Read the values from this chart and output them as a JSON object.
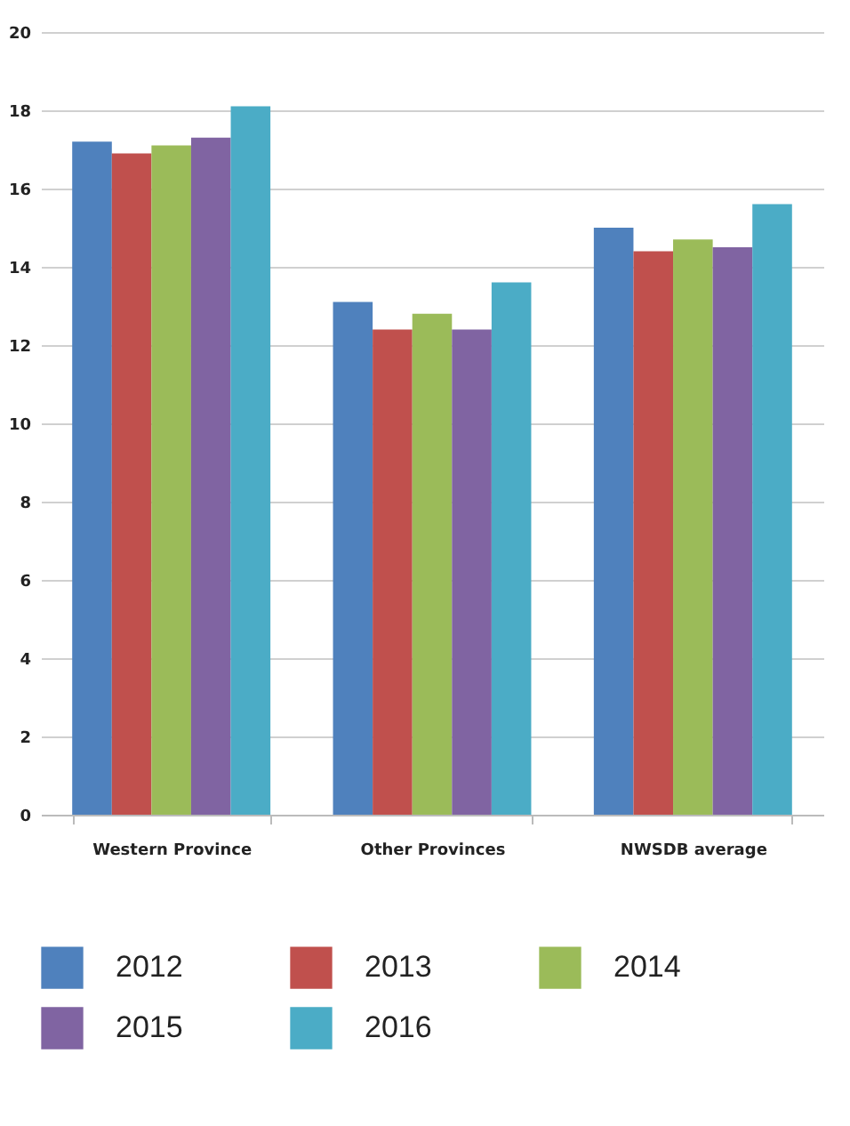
{
  "chart_data": {
    "type": "bar",
    "categories": [
      "Western Province",
      "Other Provinces",
      "NWSDB average"
    ],
    "series": [
      {
        "name": "2012",
        "color": "#4f81bd",
        "values": [
          17.2,
          13.1,
          15.0
        ]
      },
      {
        "name": "2013",
        "color": "#c0504d",
        "values": [
          16.9,
          12.4,
          14.4
        ]
      },
      {
        "name": "2014",
        "color": "#9bbb59",
        "values": [
          17.1,
          12.8,
          14.7
        ]
      },
      {
        "name": "2015",
        "color": "#8064a2",
        "values": [
          17.3,
          12.4,
          14.5
        ]
      },
      {
        "name": "2016",
        "color": "#4bacc6",
        "values": [
          18.1,
          13.6,
          15.6
        ]
      }
    ],
    "ylim": [
      0,
      20
    ],
    "yticks": [
      0,
      2,
      4,
      6,
      8,
      10,
      12,
      14,
      16,
      18,
      20
    ],
    "grid": "y",
    "legend": "bottom"
  }
}
